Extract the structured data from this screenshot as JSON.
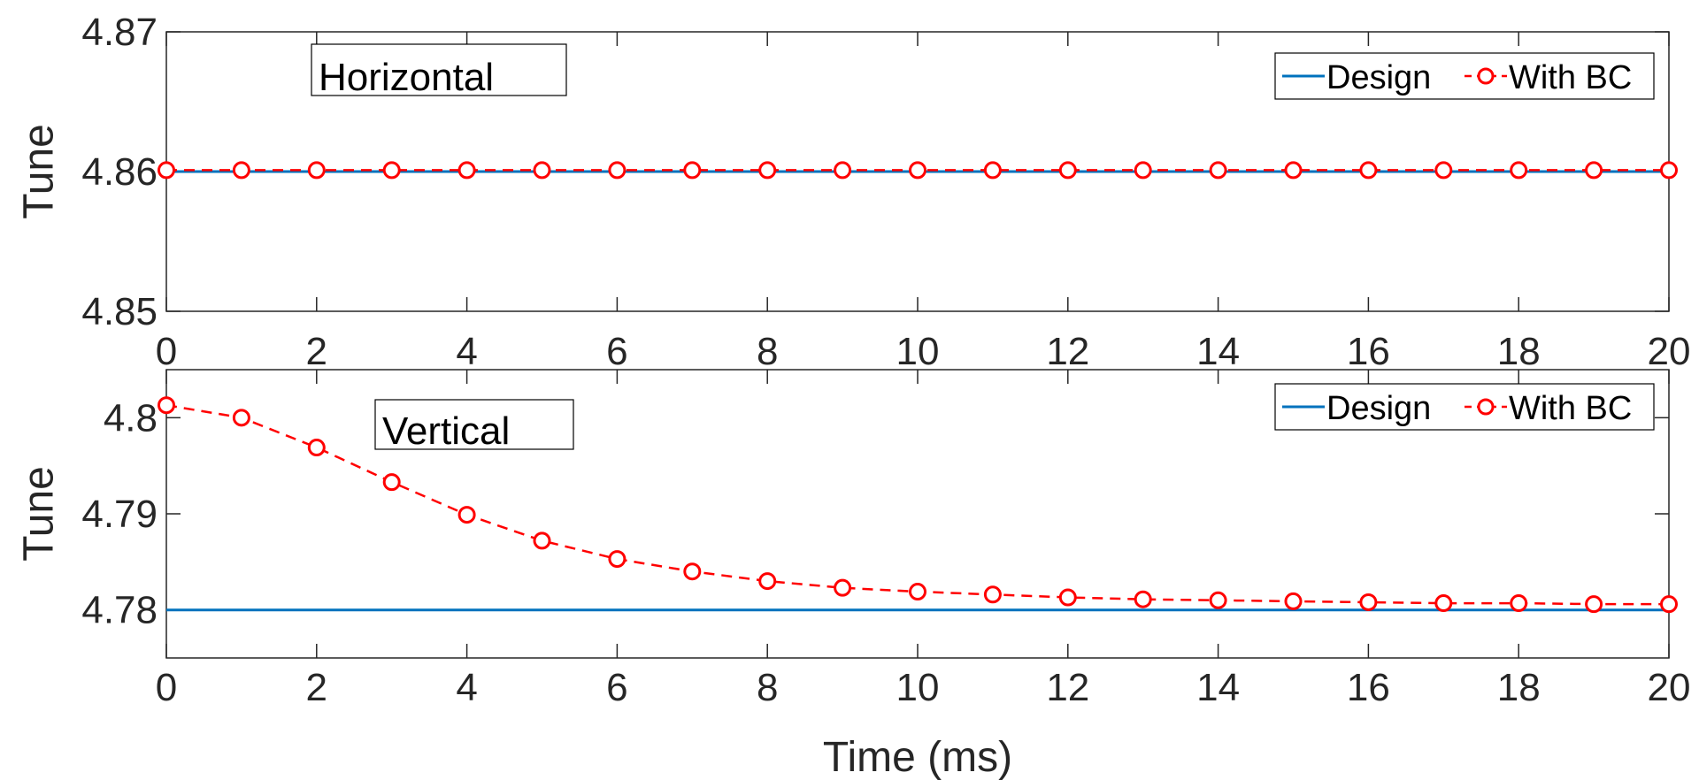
{
  "colors": {
    "design": "#0072BD",
    "with_bc": "#FF0000",
    "axis": "#262626"
  },
  "chart_data": [
    {
      "type": "line",
      "annotation": "Horizontal",
      "xlabel": "",
      "ylabel": "Tune",
      "xlim": [
        0,
        20
      ],
      "ylim": [
        4.85,
        4.87
      ],
      "xticks": [
        0,
        2,
        4,
        6,
        8,
        10,
        12,
        14,
        16,
        18,
        20
      ],
      "xtick_labels": [
        "0",
        "2",
        "4",
        "6",
        "8",
        "10",
        "12",
        "14",
        "16",
        "18",
        "20"
      ],
      "yticks": [
        4.85,
        4.86,
        4.87
      ],
      "ytick_labels": [
        "4.85",
        "4.86",
        "4.87"
      ],
      "legend_position": "top-right",
      "x": [
        0,
        1,
        2,
        3,
        4,
        5,
        6,
        7,
        8,
        9,
        10,
        11,
        12,
        13,
        14,
        15,
        16,
        17,
        18,
        19,
        20
      ],
      "series": [
        {
          "name": "Design",
          "style": "solid",
          "values": [
            4.86,
            4.86,
            4.86,
            4.86,
            4.86,
            4.86,
            4.86,
            4.86,
            4.86,
            4.86,
            4.86,
            4.86,
            4.86,
            4.86,
            4.86,
            4.86,
            4.86,
            4.86,
            4.86,
            4.86,
            4.86
          ]
        },
        {
          "name": "With BC",
          "style": "dashed-circle",
          "values": [
            4.8601,
            4.8601,
            4.8601,
            4.8601,
            4.8601,
            4.8601,
            4.8601,
            4.8601,
            4.8601,
            4.8601,
            4.8601,
            4.8601,
            4.8601,
            4.8601,
            4.8601,
            4.8601,
            4.8601,
            4.8601,
            4.8601,
            4.8601,
            4.8601
          ]
        }
      ]
    },
    {
      "type": "line",
      "annotation": "Vertical",
      "xlabel": "Time (ms)",
      "ylabel": "Tune",
      "xlim": [
        0,
        20
      ],
      "ylim": [
        4.775,
        4.805
      ],
      "xticks": [
        0,
        2,
        4,
        6,
        8,
        10,
        12,
        14,
        16,
        18,
        20
      ],
      "xtick_labels": [
        "0",
        "2",
        "4",
        "6",
        "8",
        "10",
        "12",
        "14",
        "16",
        "18",
        "20"
      ],
      "yticks": [
        4.78,
        4.79,
        4.8
      ],
      "ytick_labels": [
        "4.78",
        "4.79",
        "4.8"
      ],
      "legend_position": "top-right",
      "x": [
        0,
        1,
        2,
        3,
        4,
        5,
        6,
        7,
        8,
        9,
        10,
        11,
        12,
        13,
        14,
        15,
        16,
        17,
        18,
        19,
        20
      ],
      "series": [
        {
          "name": "Design",
          "style": "solid",
          "values": [
            4.78,
            4.78,
            4.78,
            4.78,
            4.78,
            4.78,
            4.78,
            4.78,
            4.78,
            4.78,
            4.78,
            4.78,
            4.78,
            4.78,
            4.78,
            4.78,
            4.78,
            4.78,
            4.78,
            4.78,
            4.78
          ]
        },
        {
          "name": "With BC",
          "style": "dashed-circle",
          "values": [
            4.8013,
            4.8,
            4.7969,
            4.7933,
            4.7899,
            4.7872,
            4.7853,
            4.784,
            4.783,
            4.7823,
            4.7819,
            4.7816,
            4.7813,
            4.7811,
            4.781,
            4.7809,
            4.7808,
            4.7807,
            4.7807,
            4.7806,
            4.7806
          ]
        }
      ]
    }
  ]
}
